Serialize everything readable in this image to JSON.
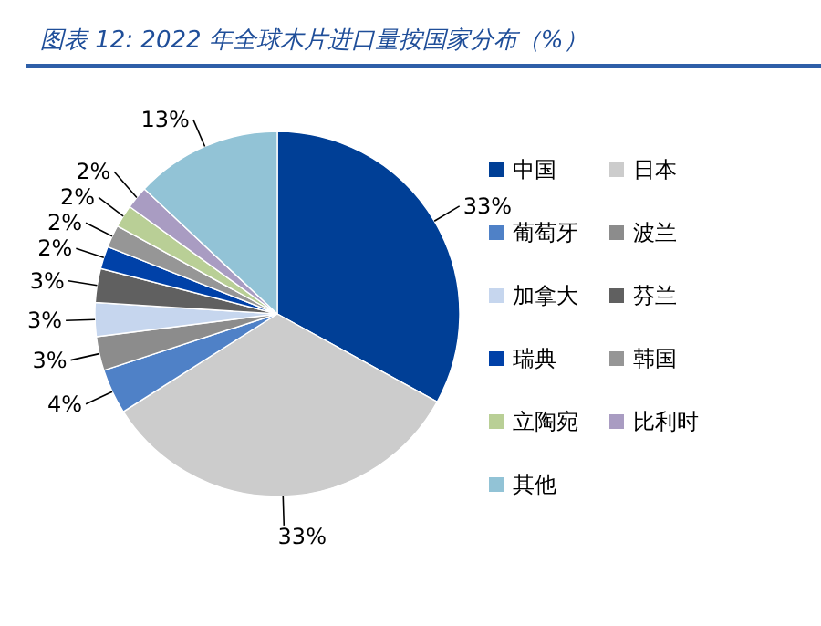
{
  "chart_data": {
    "type": "pie",
    "title": "图表 12:  2022 年全球木片进口量按国家分布（%）",
    "categories": [
      "中国",
      "日本",
      "葡萄牙",
      "波兰",
      "加拿大",
      "芬兰",
      "瑞典",
      "韩国",
      "立陶宛",
      "比利时",
      "其他"
    ],
    "values": [
      33,
      33,
      4,
      3,
      3,
      3,
      2,
      2,
      2,
      2,
      13
    ],
    "colors": [
      "#003f96",
      "#cccccc",
      "#4f81c7",
      "#8c8c8c",
      "#c6d6ee",
      "#606060",
      "#0041a8",
      "#969696",
      "#b9cf96",
      "#a99cc2",
      "#92c3d6"
    ],
    "value_labels": [
      "33%",
      "33%",
      "4%",
      "3%",
      "3%",
      "3%",
      "2%",
      "2%",
      "2%",
      "2%",
      "13%"
    ],
    "legend": "right"
  }
}
